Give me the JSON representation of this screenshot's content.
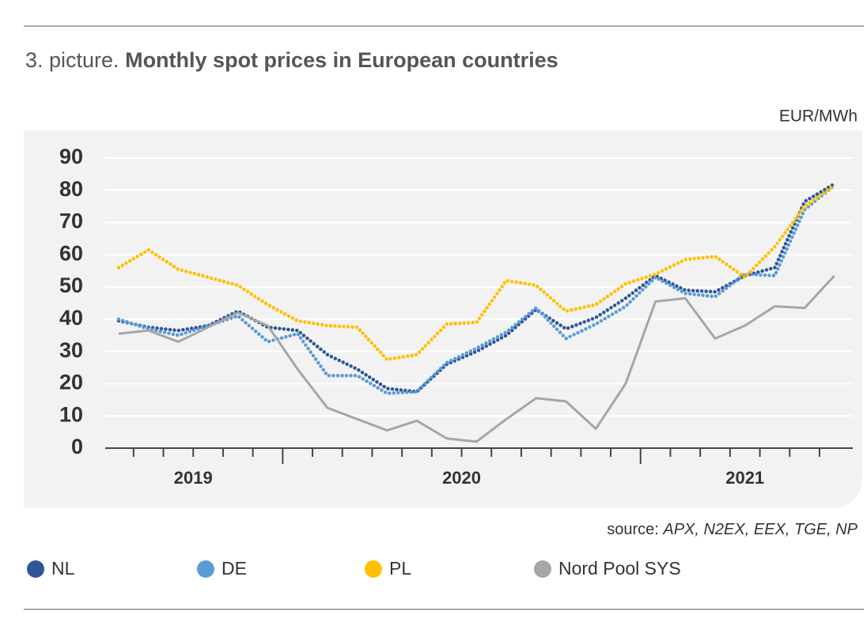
{
  "chart_data": {
    "type": "line",
    "title_prefix": "3. picture.",
    "title": "Monthly spot prices in European countries",
    "unit": "EUR/MWh",
    "source_prefix": "source:",
    "source": "APX, N2EX, EEX, TGE, NP",
    "categories": [
      "2019",
      "2019",
      "2019",
      "2019",
      "2019",
      "2019",
      "2020",
      "2020",
      "2020",
      "2020",
      "2020",
      "2020",
      "2020",
      "2020",
      "2020",
      "2020",
      "2020",
      "2020",
      "2021",
      "2021",
      "2021",
      "2021",
      "2021",
      "2021",
      "2021"
    ],
    "ylim": [
      0,
      90
    ],
    "yticks": [
      0,
      10,
      20,
      30,
      40,
      50,
      60,
      70,
      80,
      90
    ],
    "grid": true,
    "legend": "bottom",
    "series": [
      {
        "name": "NL",
        "color": "#2f5597",
        "style": "dotted",
        "values": [
          39.5,
          37.5,
          36.5,
          38,
          42.5,
          37.5,
          36.5,
          29,
          24.5,
          18.5,
          17.5,
          26,
          30,
          35,
          43,
          37,
          40.5,
          46.5,
          53.5,
          49,
          48.5,
          53.5,
          56,
          76.5,
          82
        ]
      },
      {
        "name": "DE",
        "color": "#5b9bd5",
        "style": "dotted",
        "values": [
          40,
          37,
          35,
          38,
          41,
          33,
          35.5,
          22.5,
          22.5,
          17,
          17.5,
          26.5,
          31,
          36,
          43.5,
          34,
          38.5,
          44,
          53,
          48,
          47,
          54,
          53.5,
          74,
          81.5
        ]
      },
      {
        "name": "PL",
        "color": "#ffc000",
        "style": "dotted",
        "values": [
          56,
          61.5,
          55.5,
          53,
          50.5,
          44.5,
          39.5,
          38,
          37.5,
          27.5,
          29,
          38.5,
          39,
          52,
          50.5,
          42.5,
          44.5,
          51,
          54,
          58.5,
          59.5,
          53,
          62.5,
          75,
          81.5
        ]
      },
      {
        "name": "Nord Pool SYS",
        "color": "#a6a6a6",
        "style": "solid",
        "values": [
          35.5,
          36.5,
          33,
          37.5,
          42,
          38,
          24.5,
          12.5,
          9,
          5.5,
          8.5,
          3,
          2,
          9,
          15.5,
          14.5,
          6,
          20,
          45.5,
          46.5,
          34,
          38,
          44,
          43.5,
          53.5
        ]
      }
    ]
  }
}
